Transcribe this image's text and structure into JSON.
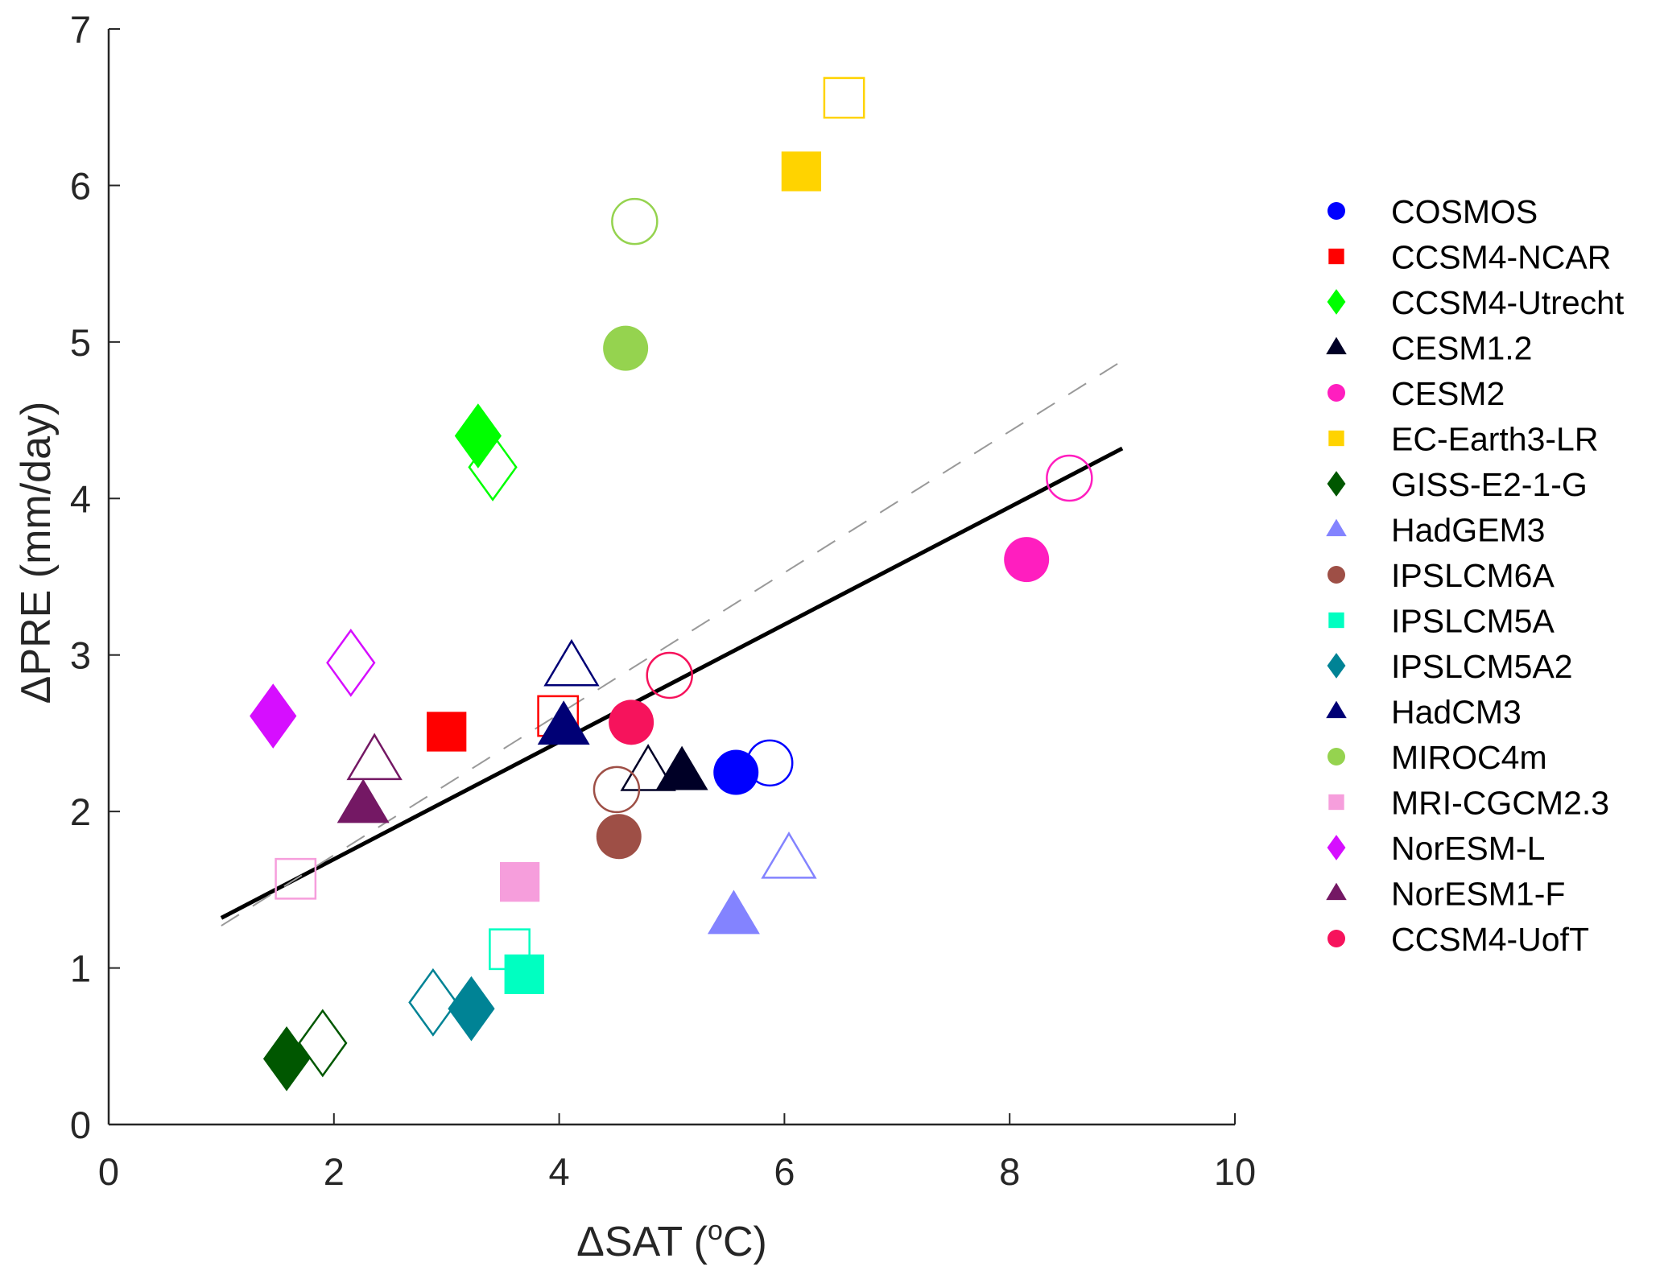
{
  "chart_data": {
    "type": "scatter",
    "title": "",
    "xlabel": "ΔSAT (°C)",
    "xlabel_parts": {
      "prefix": "ΔSAT (",
      "superscript": "o",
      "suffix": "C)"
    },
    "ylabel": "ΔPRE (mm/day)",
    "xlim": [
      0,
      10
    ],
    "ylim": [
      0,
      7
    ],
    "xticks": [
      0,
      2,
      4,
      6,
      8,
      10
    ],
    "yticks": [
      0,
      1,
      2,
      3,
      4,
      5,
      6,
      7
    ],
    "grid": false,
    "legend_position": "right",
    "marker_note": "filled markers and open markers shown for each model",
    "series": [
      {
        "name": "COSMOS",
        "marker": "circle",
        "color": "#0000ff",
        "filled": [
          5.57,
          2.25
        ],
        "open": [
          5.87,
          2.31
        ]
      },
      {
        "name": "CCSM4-NCAR",
        "marker": "square",
        "color": "#ff0000",
        "filled": [
          3.0,
          2.51
        ],
        "open": [
          3.99,
          2.61
        ]
      },
      {
        "name": "CCSM4-Utrecht",
        "marker": "diamond",
        "color": "#00ff00",
        "filled": [
          3.28,
          4.4
        ],
        "open": [
          3.41,
          4.2
        ]
      },
      {
        "name": "CESM1.2",
        "marker": "triangle",
        "color": "#000026",
        "filled": [
          5.09,
          2.25
        ],
        "open": [
          4.79,
          2.25
        ]
      },
      {
        "name": "CESM2",
        "marker": "circle",
        "color": "#ff1ebf",
        "filled": [
          8.15,
          3.61
        ],
        "open": [
          8.53,
          4.13
        ]
      },
      {
        "name": "EC-Earth3-LR",
        "marker": "square",
        "color": "#ffd300",
        "filled": [
          6.15,
          6.09
        ],
        "open": [
          6.53,
          6.56
        ]
      },
      {
        "name": "GISS-E2-1-G",
        "marker": "diamond",
        "color": "#005700",
        "filled": [
          1.58,
          0.42
        ],
        "open": [
          1.9,
          0.52
        ]
      },
      {
        "name": "HadGEM3",
        "marker": "triangle",
        "color": "#8383ff",
        "filled": [
          5.55,
          1.33
        ],
        "open": [
          6.04,
          1.69
        ]
      },
      {
        "name": "IPSLCM6A",
        "marker": "circle",
        "color": "#9e4f46",
        "filled": [
          4.53,
          1.84
        ],
        "open": [
          4.51,
          2.14
        ]
      },
      {
        "name": "IPSLCM5A",
        "marker": "square",
        "color": "#00ffc1",
        "filled": [
          3.69,
          0.96
        ],
        "open": [
          3.56,
          1.12
        ]
      },
      {
        "name": "IPSLCM5A2",
        "marker": "diamond",
        "color": "#008395",
        "filled": [
          3.22,
          0.74
        ],
        "open": [
          2.88,
          0.78
        ]
      },
      {
        "name": "HadCM3",
        "marker": "triangle",
        "color": "#000075",
        "filled": [
          4.04,
          2.54
        ],
        "open": [
          4.11,
          2.92
        ]
      },
      {
        "name": "MIROC4m",
        "marker": "circle",
        "color": "#95d34f",
        "filled": [
          4.59,
          4.96
        ],
        "open": [
          4.67,
          5.77
        ]
      },
      {
        "name": "MRI-CGCM2.3",
        "marker": "square",
        "color": "#f69edc",
        "filled": [
          3.65,
          1.55
        ],
        "open": [
          1.66,
          1.57
        ]
      },
      {
        "name": "NorESM-L",
        "marker": "diamond",
        "color": "#d60eff",
        "filled": [
          1.46,
          2.61
        ],
        "open": [
          2.15,
          2.95
        ]
      },
      {
        "name": "NorESM1-F",
        "marker": "triangle",
        "color": "#741864",
        "filled": [
          2.26,
          2.04
        ],
        "open": [
          2.36,
          2.32
        ]
      },
      {
        "name": "CCSM4-UofT",
        "marker": "circle",
        "color": "#f6135c",
        "filled": [
          4.64,
          2.57
        ],
        "open": [
          4.98,
          2.87
        ]
      }
    ],
    "lines": [
      {
        "name": "fit-solid",
        "style": "solid",
        "color": "#000000",
        "x": [
          1.0,
          9.0
        ],
        "y": [
          1.32,
          4.32
        ]
      },
      {
        "name": "fit-dashed",
        "style": "dashed",
        "color": "#999999",
        "x": [
          1.0,
          9.0
        ],
        "y": [
          1.27,
          4.88
        ]
      }
    ]
  }
}
